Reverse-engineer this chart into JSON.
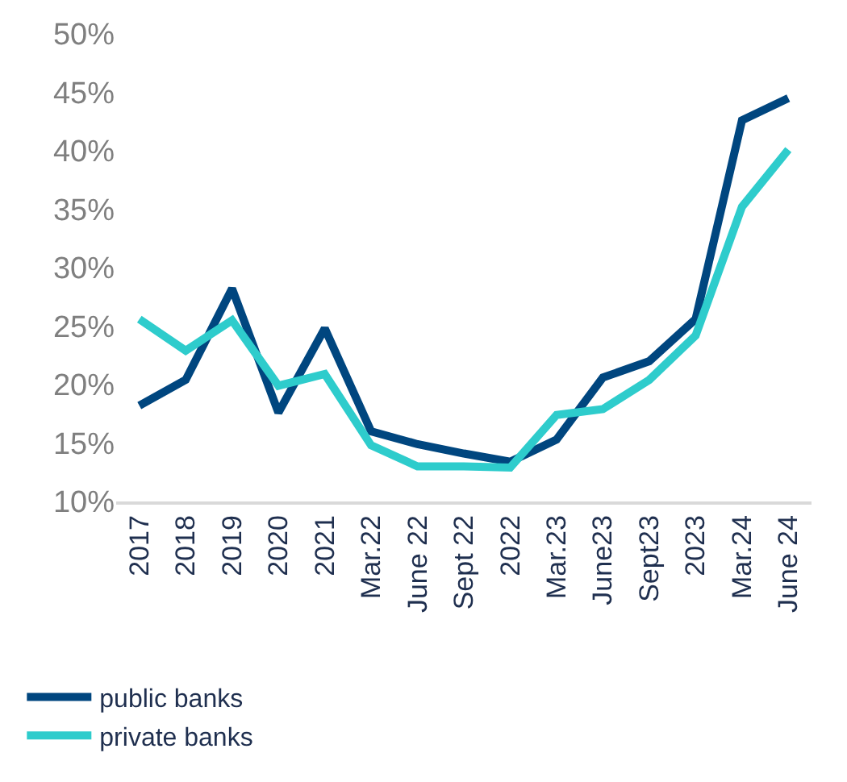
{
  "chart_data": {
    "type": "line",
    "categories": [
      "2017",
      "2018",
      "2019",
      "2020",
      "2021",
      "Mar.22",
      "June 22",
      "Sept 22",
      "2022",
      "Mar.23",
      "June23",
      "Sept23",
      "2023",
      "Mar.24",
      "June 24"
    ],
    "series": [
      {
        "name": "public banks",
        "color": "#00467f",
        "values": [
          18.2,
          20.4,
          28.2,
          17.6,
          24.8,
          16.0,
          14.9,
          14.1,
          13.4,
          15.3,
          20.6,
          22.0,
          25.6,
          42.6,
          44.5
        ]
      },
      {
        "name": "private banks",
        "color": "#2ecccc",
        "values": [
          25.6,
          22.9,
          25.5,
          19.9,
          20.9,
          14.8,
          13.0,
          13.0,
          12.9,
          17.4,
          17.9,
          20.4,
          24.2,
          35.2,
          40.1
        ]
      }
    ],
    "ylim": [
      10,
      50
    ],
    "yticks": [
      {
        "value": 10,
        "label": "10%"
      },
      {
        "value": 15,
        "label": "15%"
      },
      {
        "value": 20,
        "label": "20%"
      },
      {
        "value": 25,
        "label": "25%"
      },
      {
        "value": 30,
        "label": "30%"
      },
      {
        "value": 35,
        "label": "35%"
      },
      {
        "value": 40,
        "label": "40%"
      },
      {
        "value": 45,
        "label": "45%"
      },
      {
        "value": 50,
        "label": "50%"
      }
    ],
    "legend": "bottom",
    "marker": "none",
    "line_style": "solid"
  }
}
